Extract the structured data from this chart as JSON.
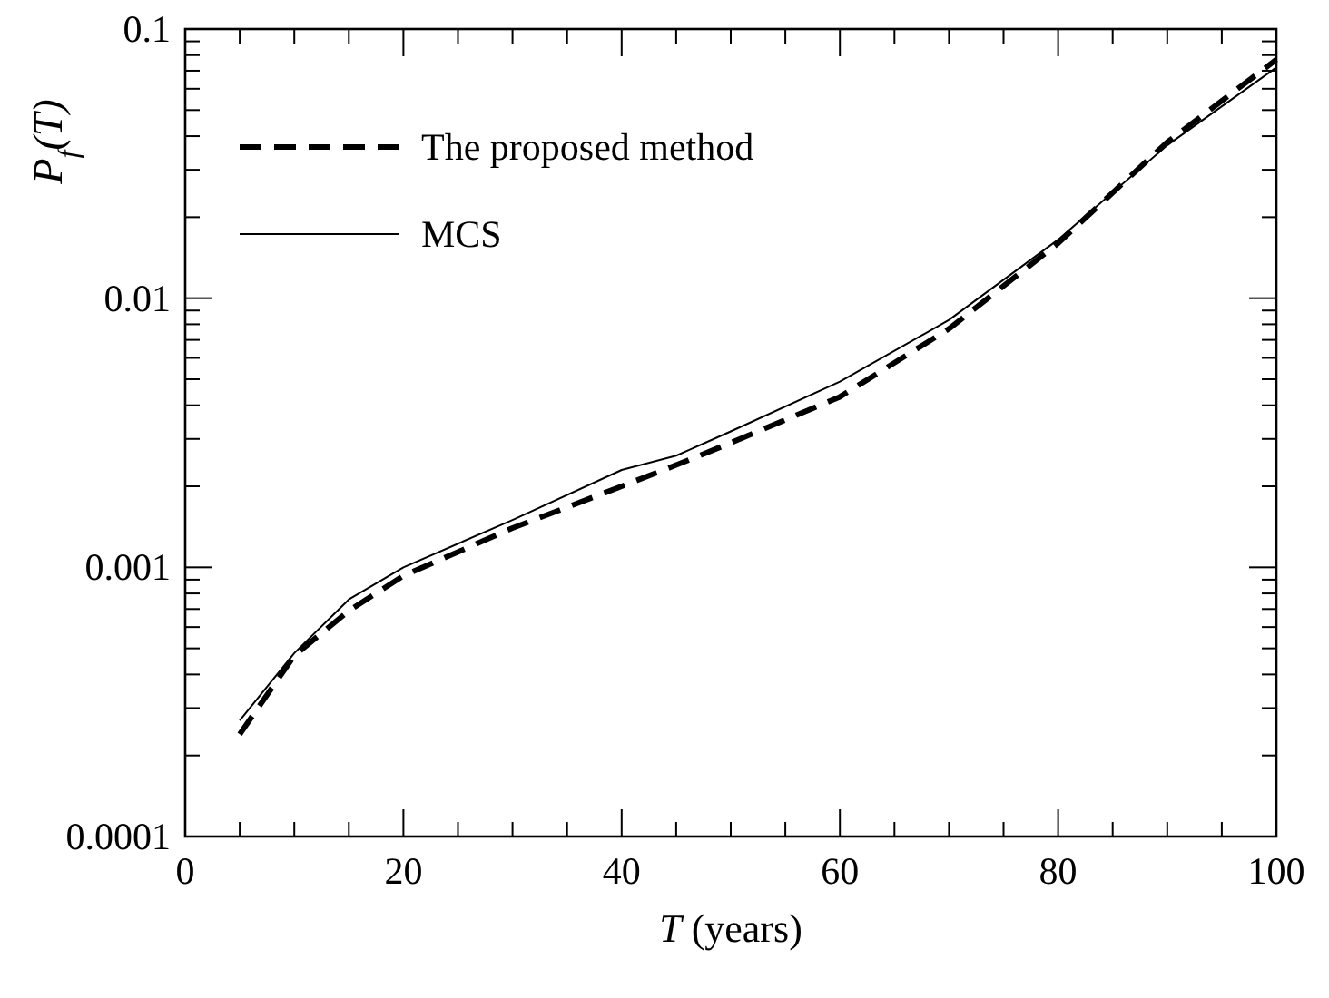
{
  "chart_data": {
    "type": "line",
    "xlabel": "T (years)",
    "ylabel": "P$_{f}$(T)",
    "x": [
      5,
      10,
      15,
      20,
      30,
      40,
      45,
      50,
      60,
      70,
      80,
      90,
      100
    ],
    "series": [
      {
        "name": "The proposed method",
        "color": "#000000",
        "line_style": "dashed",
        "values": [
          0.00024,
          0.00047,
          0.00069,
          0.00093,
          0.0014,
          0.002,
          0.0024,
          0.0029,
          0.0043,
          0.0077,
          0.016,
          0.038,
          0.077
        ]
      },
      {
        "name": "MCS",
        "color": "#000000",
        "line_style": "solid",
        "values": [
          0.00027,
          0.00048,
          0.00076,
          0.001,
          0.0015,
          0.0023,
          0.0026,
          0.0032,
          0.0049,
          0.0083,
          0.0165,
          0.037,
          0.072
        ]
      }
    ],
    "xlim": [
      0,
      100
    ],
    "xticks": [
      0,
      {
        "value": 5,
        "label": null
      },
      {
        "value": 10,
        "label": null
      },
      {
        "value": 15,
        "label": null
      },
      20,
      {
        "value": 25,
        "label": null
      },
      {
        "value": 30,
        "label": null
      },
      {
        "value": 35,
        "label": null
      },
      40,
      {
        "value": 45,
        "label": null
      },
      {
        "value": 50,
        "label": null
      },
      {
        "value": 55,
        "label": null
      },
      60,
      {
        "value": 65,
        "label": null
      },
      {
        "value": 70,
        "label": null
      },
      {
        "value": 75,
        "label": null
      },
      80,
      {
        "value": 85,
        "label": null
      },
      {
        "value": 90,
        "label": null
      },
      {
        "value": 95,
        "label": null
      },
      100
    ],
    "ylim": [
      0.0001,
      0.1
    ],
    "log": "y",
    "yticks": [
      {
        "value": 0.0001,
        "label": "0.0001"
      },
      {
        "value": 0.0002,
        "label": null
      },
      {
        "value": 0.0003,
        "label": null
      },
      {
        "value": 0.0004,
        "label": null
      },
      {
        "value": 0.0005,
        "label": null
      },
      {
        "value": 0.0006,
        "label": null
      },
      {
        "value": 0.0007,
        "label": null
      },
      {
        "value": 0.0008,
        "label": null
      },
      {
        "value": 0.0009,
        "label": null
      },
      {
        "value": 0.001,
        "label": "0.001"
      },
      {
        "value": 0.002,
        "label": null
      },
      {
        "value": 0.003,
        "label": null
      },
      {
        "value": 0.004,
        "label": null
      },
      {
        "value": 0.005,
        "label": null
      },
      {
        "value": 0.006,
        "label": null
      },
      {
        "value": 0.007,
        "label": null
      },
      {
        "value": 0.008,
        "label": null
      },
      {
        "value": 0.009,
        "label": null
      },
      {
        "value": 0.01,
        "label": "0.01"
      },
      {
        "value": 0.02,
        "label": null
      },
      {
        "value": 0.03,
        "label": null
      },
      {
        "value": 0.04,
        "label": null
      },
      {
        "value": 0.05,
        "label": null
      },
      {
        "value": 0.06,
        "label": null
      },
      {
        "value": 0.07,
        "label": null
      },
      {
        "value": 0.08,
        "label": null
      },
      {
        "value": 0.09,
        "label": null
      },
      {
        "value": 0.1,
        "label": "0.1"
      }
    ],
    "legend": "top left",
    "grid": false
  }
}
